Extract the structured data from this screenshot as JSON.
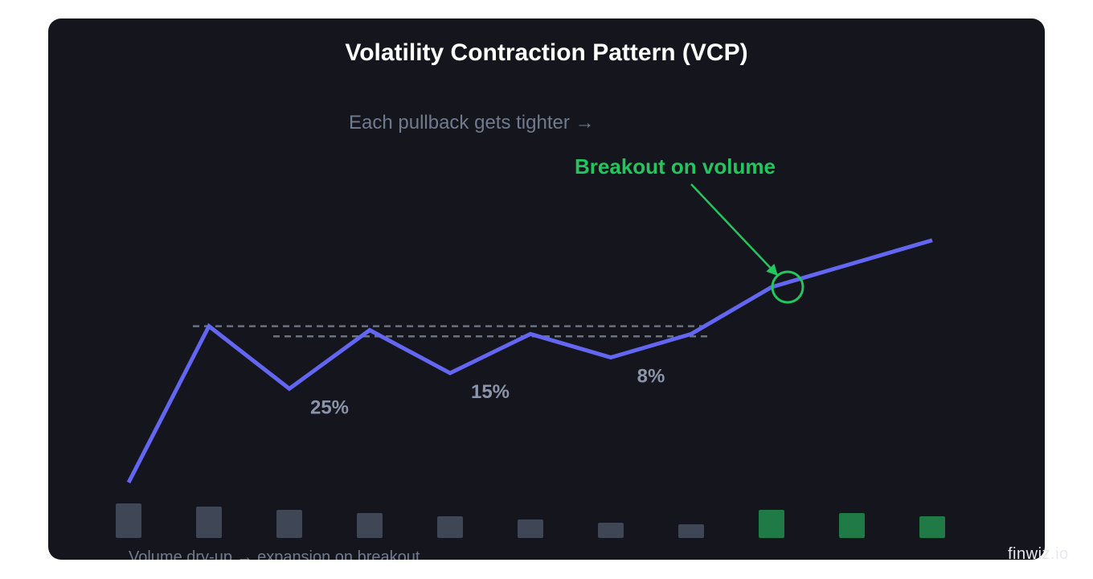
{
  "chart_data": {
    "type": "line",
    "title": "Volatility Contraction Pattern (VCP)",
    "subtitle": "Each pullback gets tighter →",
    "xlabel": "",
    "ylabel": "",
    "grid": false,
    "series": [
      {
        "values": [
          0,
          20,
          12,
          19.5,
          14,
          19,
          16,
          19,
          25,
          28,
          31
        ],
        "color": "#6366f1"
      }
    ],
    "resistance_lines": [
      {
        "y": 20,
        "x_start": 0.8,
        "x_end": 7.2
      },
      {
        "y": 18.7,
        "x_start": 1.8,
        "x_end": 7.2
      }
    ],
    "contraction_labels": [
      {
        "text": "25%",
        "x": 2.5,
        "y": 8.8
      },
      {
        "text": "15%",
        "x": 4.5,
        "y": 10.8
      },
      {
        "text": "8%",
        "x": 6.5,
        "y": 12.8
      }
    ],
    "breakout": {
      "label": "Breakout on volume",
      "x": 8.2,
      "y": 25,
      "color": "#22c55e"
    },
    "volume": {
      "caption": "Volume dry-up → expansion on breakout",
      "bars": [
        {
          "x": 0,
          "value": 43,
          "type": "dry"
        },
        {
          "x": 1,
          "value": 39,
          "type": "dry"
        },
        {
          "x": 2,
          "value": 35,
          "type": "dry"
        },
        {
          "x": 3,
          "value": 31,
          "type": "dry"
        },
        {
          "x": 4,
          "value": 27,
          "type": "dry"
        },
        {
          "x": 5,
          "value": 23,
          "type": "dry"
        },
        {
          "x": 6,
          "value": 19,
          "type": "dry"
        },
        {
          "x": 7,
          "value": 17,
          "type": "dry"
        },
        {
          "x": 8,
          "value": 35,
          "type": "breakout"
        },
        {
          "x": 9,
          "value": 31,
          "type": "breakout"
        },
        {
          "x": 10,
          "value": 27,
          "type": "breakout"
        }
      ],
      "dry_color": "#3f4756",
      "breakout_color": "#1f7a45"
    },
    "ylim": [
      0,
      32
    ],
    "xlim": [
      0,
      10.4
    ]
  },
  "colors": {
    "background": "#14151d",
    "title": "#ffffff",
    "muted_text": "#717b8e",
    "contraction_text": "#8b94a8",
    "dashed_line": "#6b7280"
  },
  "watermark": "finwiz.io"
}
